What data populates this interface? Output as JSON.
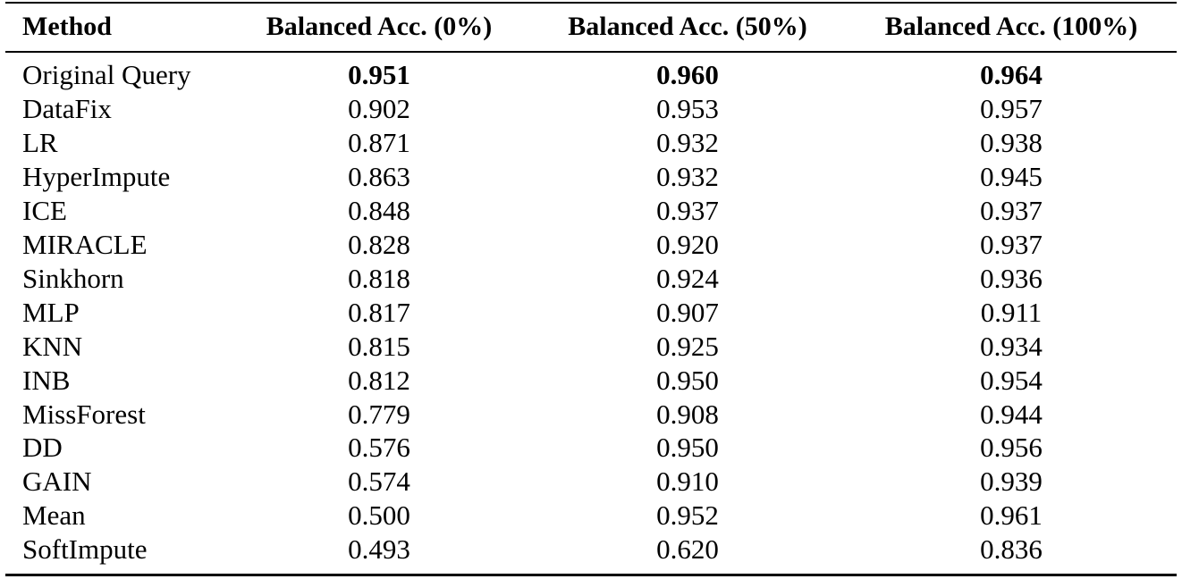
{
  "table": {
    "header": [
      "Method",
      "Balanced Acc. (0%)",
      "Balanced Acc. (50%)",
      "Balanced Acc. (100%)"
    ],
    "rows": [
      [
        "Original Query",
        "0.951",
        "0.960",
        "0.964"
      ],
      [
        "DataFix",
        "0.902",
        "0.953",
        "0.957"
      ],
      [
        "LR",
        "0.871",
        "0.932",
        "0.938"
      ],
      [
        "HyperImpute",
        "0.863",
        "0.932",
        "0.945"
      ],
      [
        "ICE",
        "0.848",
        "0.937",
        "0.937"
      ],
      [
        "MIRACLE",
        "0.828",
        "0.920",
        "0.937"
      ],
      [
        "Sinkhorn",
        "0.818",
        "0.924",
        "0.936"
      ],
      [
        "MLP",
        "0.817",
        "0.907",
        "0.911"
      ],
      [
        "KNN",
        "0.815",
        "0.925",
        "0.934"
      ],
      [
        "INB",
        "0.812",
        "0.950",
        "0.954"
      ],
      [
        "MissForest",
        "0.779",
        "0.908",
        "0.944"
      ],
      [
        "DD",
        "0.576",
        "0.950",
        "0.956"
      ],
      [
        "GAIN",
        "0.574",
        "0.910",
        "0.939"
      ],
      [
        "Mean",
        "0.500",
        "0.952",
        "0.961"
      ],
      [
        "SoftImpute",
        "0.493",
        "0.620",
        "0.836"
      ]
    ]
  }
}
